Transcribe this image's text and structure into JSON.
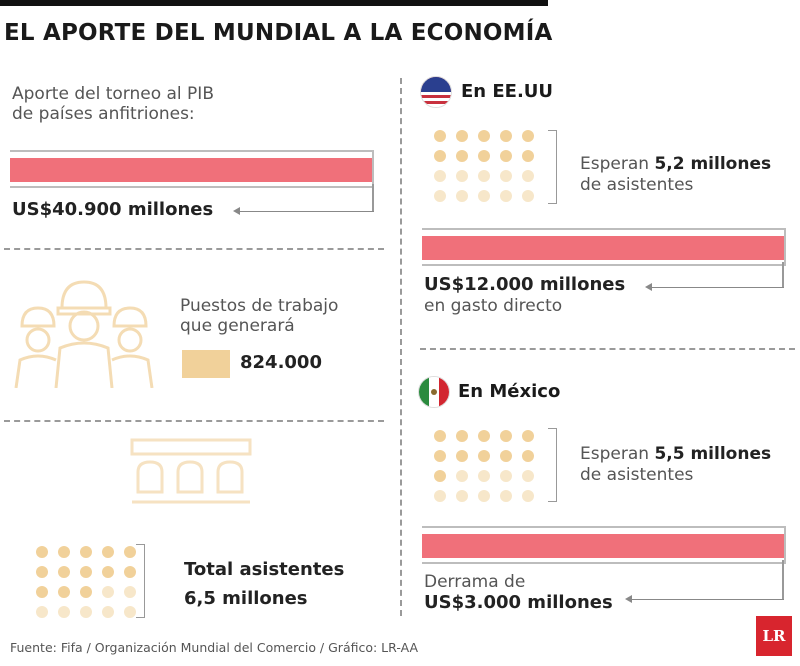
{
  "header": {
    "title": "EL APORTE DEL MUNDIAL A LA ECONOMÍA"
  },
  "colors": {
    "bar": "#f0707a",
    "dot": "#f1d19a",
    "dot_light": "#f7e7ca",
    "brand": "#d8252e"
  },
  "left": {
    "pib": {
      "label_line1": "Aporte del torneo al PIB",
      "label_line2": "de países anfitriones:",
      "value": "US$40.900 millones"
    },
    "jobs": {
      "label_line1": "Puestos de trabajo",
      "label_line2": "que generará",
      "value": "824.000",
      "icon": "workers-icon"
    },
    "attendance": {
      "label_line1": "Total asistentes",
      "label_line2": "6,5 millones",
      "icon": "stadium-seats-icon"
    }
  },
  "usa": {
    "country": "En EE.UU",
    "flag": "usa-flag-icon",
    "attendees_prefix": "Esperan ",
    "attendees_value": "5,2 millones",
    "attendees_suffix": "de asistentes",
    "spend_value": "US$12.000 millones",
    "spend_label": "en gasto directo"
  },
  "mexico": {
    "country": "En México",
    "flag": "mexico-flag-icon",
    "attendees_prefix": "Esperan ",
    "attendees_value": "5,5 millones",
    "attendees_suffix": "de asistentes",
    "spill_label": "Derrama de",
    "spill_value": "US$3.000 millones"
  },
  "footer": {
    "source": "Fuente: Fifa / Organización Mundial del Comercio / Gráfico: LR-AA",
    "logo": "LR"
  },
  "chart_data": {
    "type": "bar",
    "categories": [
      "PIB países anfitriones",
      "EE.UU gasto directo",
      "México derrama"
    ],
    "values": [
      40900,
      12000,
      3000
    ],
    "unit": "US$ millones",
    "attendees_millions": {
      "total": 6.5,
      "usa": 5.2,
      "mexico": 5.5
    },
    "jobs": 824000
  }
}
